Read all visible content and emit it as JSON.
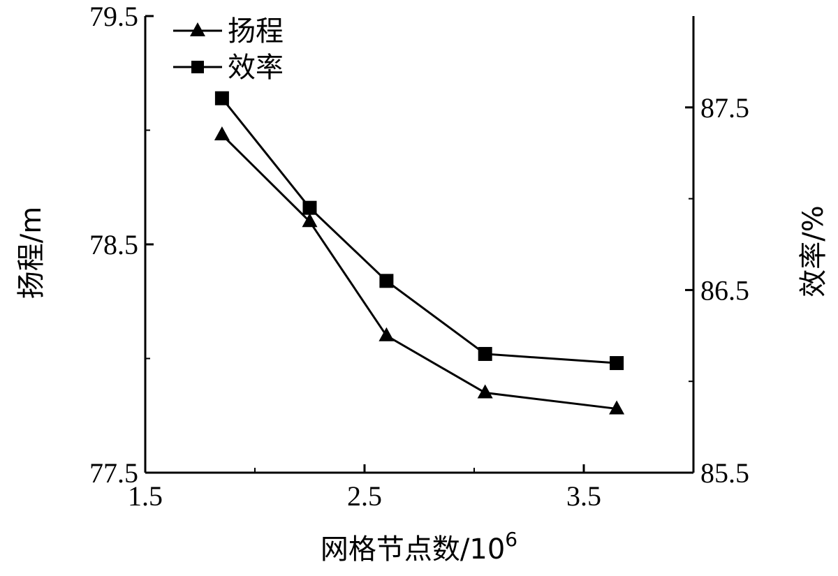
{
  "chart_data": {
    "type": "line",
    "x": [
      1.85,
      2.25,
      2.6,
      3.05,
      3.65
    ],
    "xlabel": "网格节点数/10",
    "xlabel_exponent": "6",
    "xlim": [
      1.5,
      4.0
    ],
    "xticks": [
      "1.5",
      "2.5",
      "3.5"
    ],
    "y_left": {
      "label": "扬程/m",
      "lim": [
        77.5,
        79.5
      ],
      "ticks": [
        "79.5",
        "78.5",
        "77.5"
      ]
    },
    "y_right": {
      "label": "效率/%",
      "lim": [
        85.5,
        88.0
      ],
      "ticks": [
        "87.5",
        "86.5",
        "85.5"
      ]
    },
    "series": [
      {
        "name": "扬程",
        "axis": "left",
        "marker": "triangle",
        "values": [
          78.98,
          78.6,
          78.1,
          77.85,
          77.78
        ]
      },
      {
        "name": "效率",
        "axis": "right",
        "marker": "square",
        "values": [
          87.55,
          86.95,
          86.55,
          86.15,
          86.1
        ]
      }
    ],
    "legend": "top-left",
    "grid": false
  }
}
